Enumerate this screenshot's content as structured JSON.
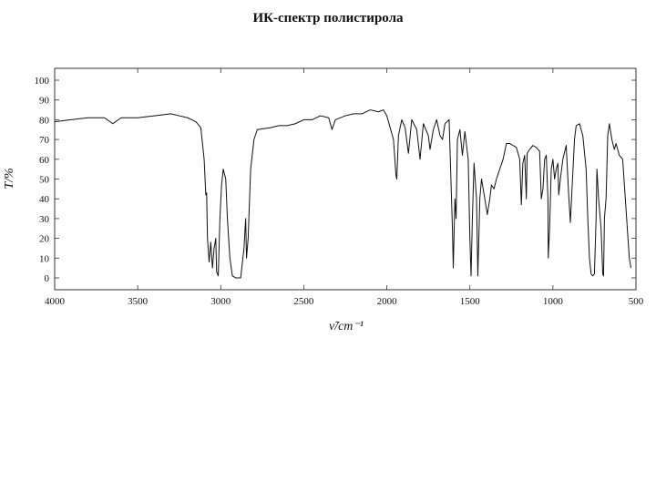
{
  "chart_data": {
    "type": "line",
    "title": "ИК-спектр полистирола",
    "x_label": "ν̃/cm⁻¹",
    "y_label": "T/%",
    "color": "#111111",
    "xlim": [
      4000,
      500
    ],
    "ylim": [
      -6,
      106
    ],
    "xticks": [
      4000,
      3500,
      3000,
      2500,
      2000,
      1500,
      1000,
      500
    ],
    "yticks": [
      0,
      10,
      20,
      30,
      40,
      50,
      60,
      70,
      80,
      90,
      100
    ],
    "grid": false,
    "x": [
      4000,
      3900,
      3800,
      3700,
      3650,
      3600,
      3500,
      3400,
      3300,
      3250,
      3200,
      3150,
      3120,
      3100,
      3090,
      3085,
      3080,
      3070,
      3060,
      3050,
      3040,
      3030,
      3025,
      3015,
      3005,
      2995,
      2985,
      2970,
      2960,
      2945,
      2930,
      2910,
      2880,
      2860,
      2850,
      2845,
      2835,
      2820,
      2800,
      2780,
      2700,
      2650,
      2600,
      2550,
      2500,
      2450,
      2400,
      2350,
      2330,
      2310,
      2250,
      2200,
      2150,
      2100,
      2050,
      2020,
      2000,
      1980,
      1960,
      1945,
      1940,
      1930,
      1910,
      1890,
      1870,
      1850,
      1820,
      1800,
      1780,
      1750,
      1740,
      1720,
      1700,
      1680,
      1665,
      1650,
      1625,
      1605,
      1600,
      1590,
      1583,
      1575,
      1560,
      1545,
      1530,
      1510,
      1500,
      1493,
      1485,
      1475,
      1460,
      1452,
      1440,
      1430,
      1410,
      1395,
      1380,
      1370,
      1355,
      1340,
      1320,
      1300,
      1280,
      1260,
      1240,
      1220,
      1200,
      1190,
      1181,
      1170,
      1160,
      1155,
      1140,
      1120,
      1100,
      1080,
      1070,
      1060,
      1050,
      1040,
      1030,
      1028,
      1020,
      1010,
      1000,
      990,
      980,
      970,
      965,
      955,
      940,
      920,
      905,
      895,
      885,
      870,
      860,
      840,
      820,
      800,
      790,
      780,
      770,
      760,
      750,
      740,
      735,
      725,
      710,
      700,
      695,
      690,
      680,
      670,
      660,
      645,
      630,
      620,
      600,
      580,
      560,
      540,
      530
    ],
    "values": [
      79,
      80,
      81,
      81,
      78,
      81,
      81,
      82,
      83,
      82,
      81,
      79,
      76,
      60,
      42,
      43,
      20,
      8,
      18,
      5,
      15,
      20,
      3,
      1,
      30,
      47,
      55,
      50,
      30,
      10,
      1,
      0,
      0,
      15,
      30,
      10,
      20,
      55,
      70,
      75,
      76,
      77,
      77,
      78,
      80,
      80,
      82,
      81,
      75,
      80,
      82,
      83,
      83,
      85,
      84,
      85,
      82,
      76,
      70,
      52,
      50,
      72,
      80,
      76,
      63,
      80,
      75,
      60,
      78,
      72,
      65,
      75,
      80,
      72,
      70,
      78,
      80,
      25,
      5,
      40,
      30,
      70,
      75,
      62,
      74,
      60,
      20,
      1,
      30,
      58,
      40,
      1,
      40,
      50,
      40,
      32,
      40,
      47,
      45,
      50,
      55,
      60,
      68,
      68,
      67,
      66,
      60,
      37,
      58,
      62,
      40,
      63,
      65,
      67,
      66,
      64,
      40,
      45,
      60,
      62,
      40,
      10,
      25,
      55,
      60,
      50,
      55,
      58,
      42,
      50,
      60,
      67,
      42,
      28,
      45,
      70,
      77,
      78,
      72,
      55,
      30,
      10,
      2,
      1,
      2,
      30,
      55,
      40,
      25,
      2,
      1,
      30,
      40,
      72,
      78,
      70,
      65,
      68,
      62,
      60,
      35,
      10,
      5
    ]
  }
}
